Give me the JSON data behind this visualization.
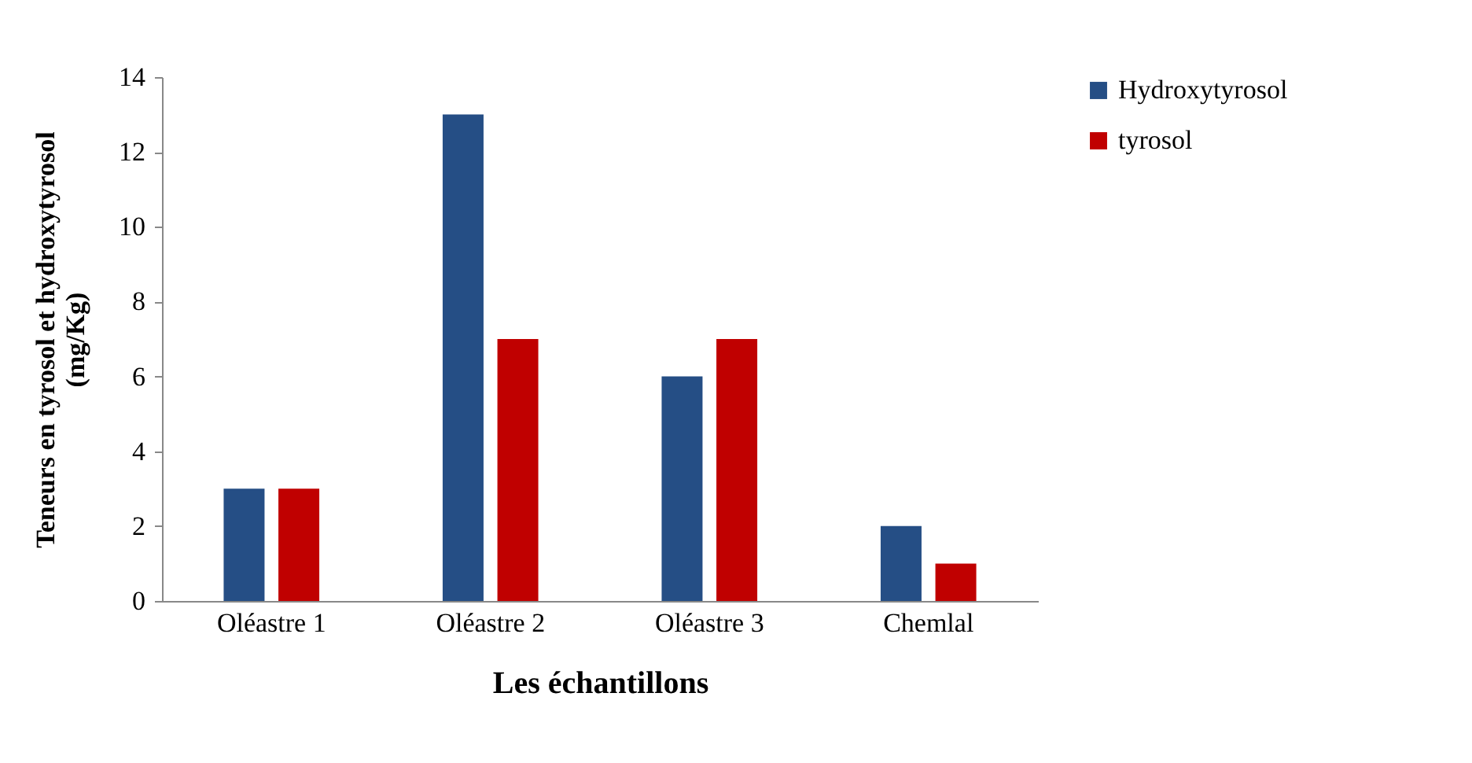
{
  "chart_data": {
    "type": "bar",
    "xlabel": "Les échantillons",
    "ylabel": "Teneurs en tyrosol et hydroxytyrosol (mg/Kg)",
    "categories": [
      "Oléastre 1",
      "Oléastre 2",
      "Oléastre 3",
      "Chemlal"
    ],
    "series": [
      {
        "name": "Hydroxytyrosol",
        "color": "#254e85",
        "values": [
          3,
          13,
          6,
          2
        ]
      },
      {
        "name": "tyrosol",
        "color": "#c00000",
        "values": [
          3,
          7,
          7,
          1
        ]
      }
    ],
    "ylim": [
      0,
      14
    ],
    "yticks": [
      0,
      2,
      4,
      6,
      8,
      10,
      12,
      14
    ],
    "grid": false,
    "legend": "right"
  }
}
